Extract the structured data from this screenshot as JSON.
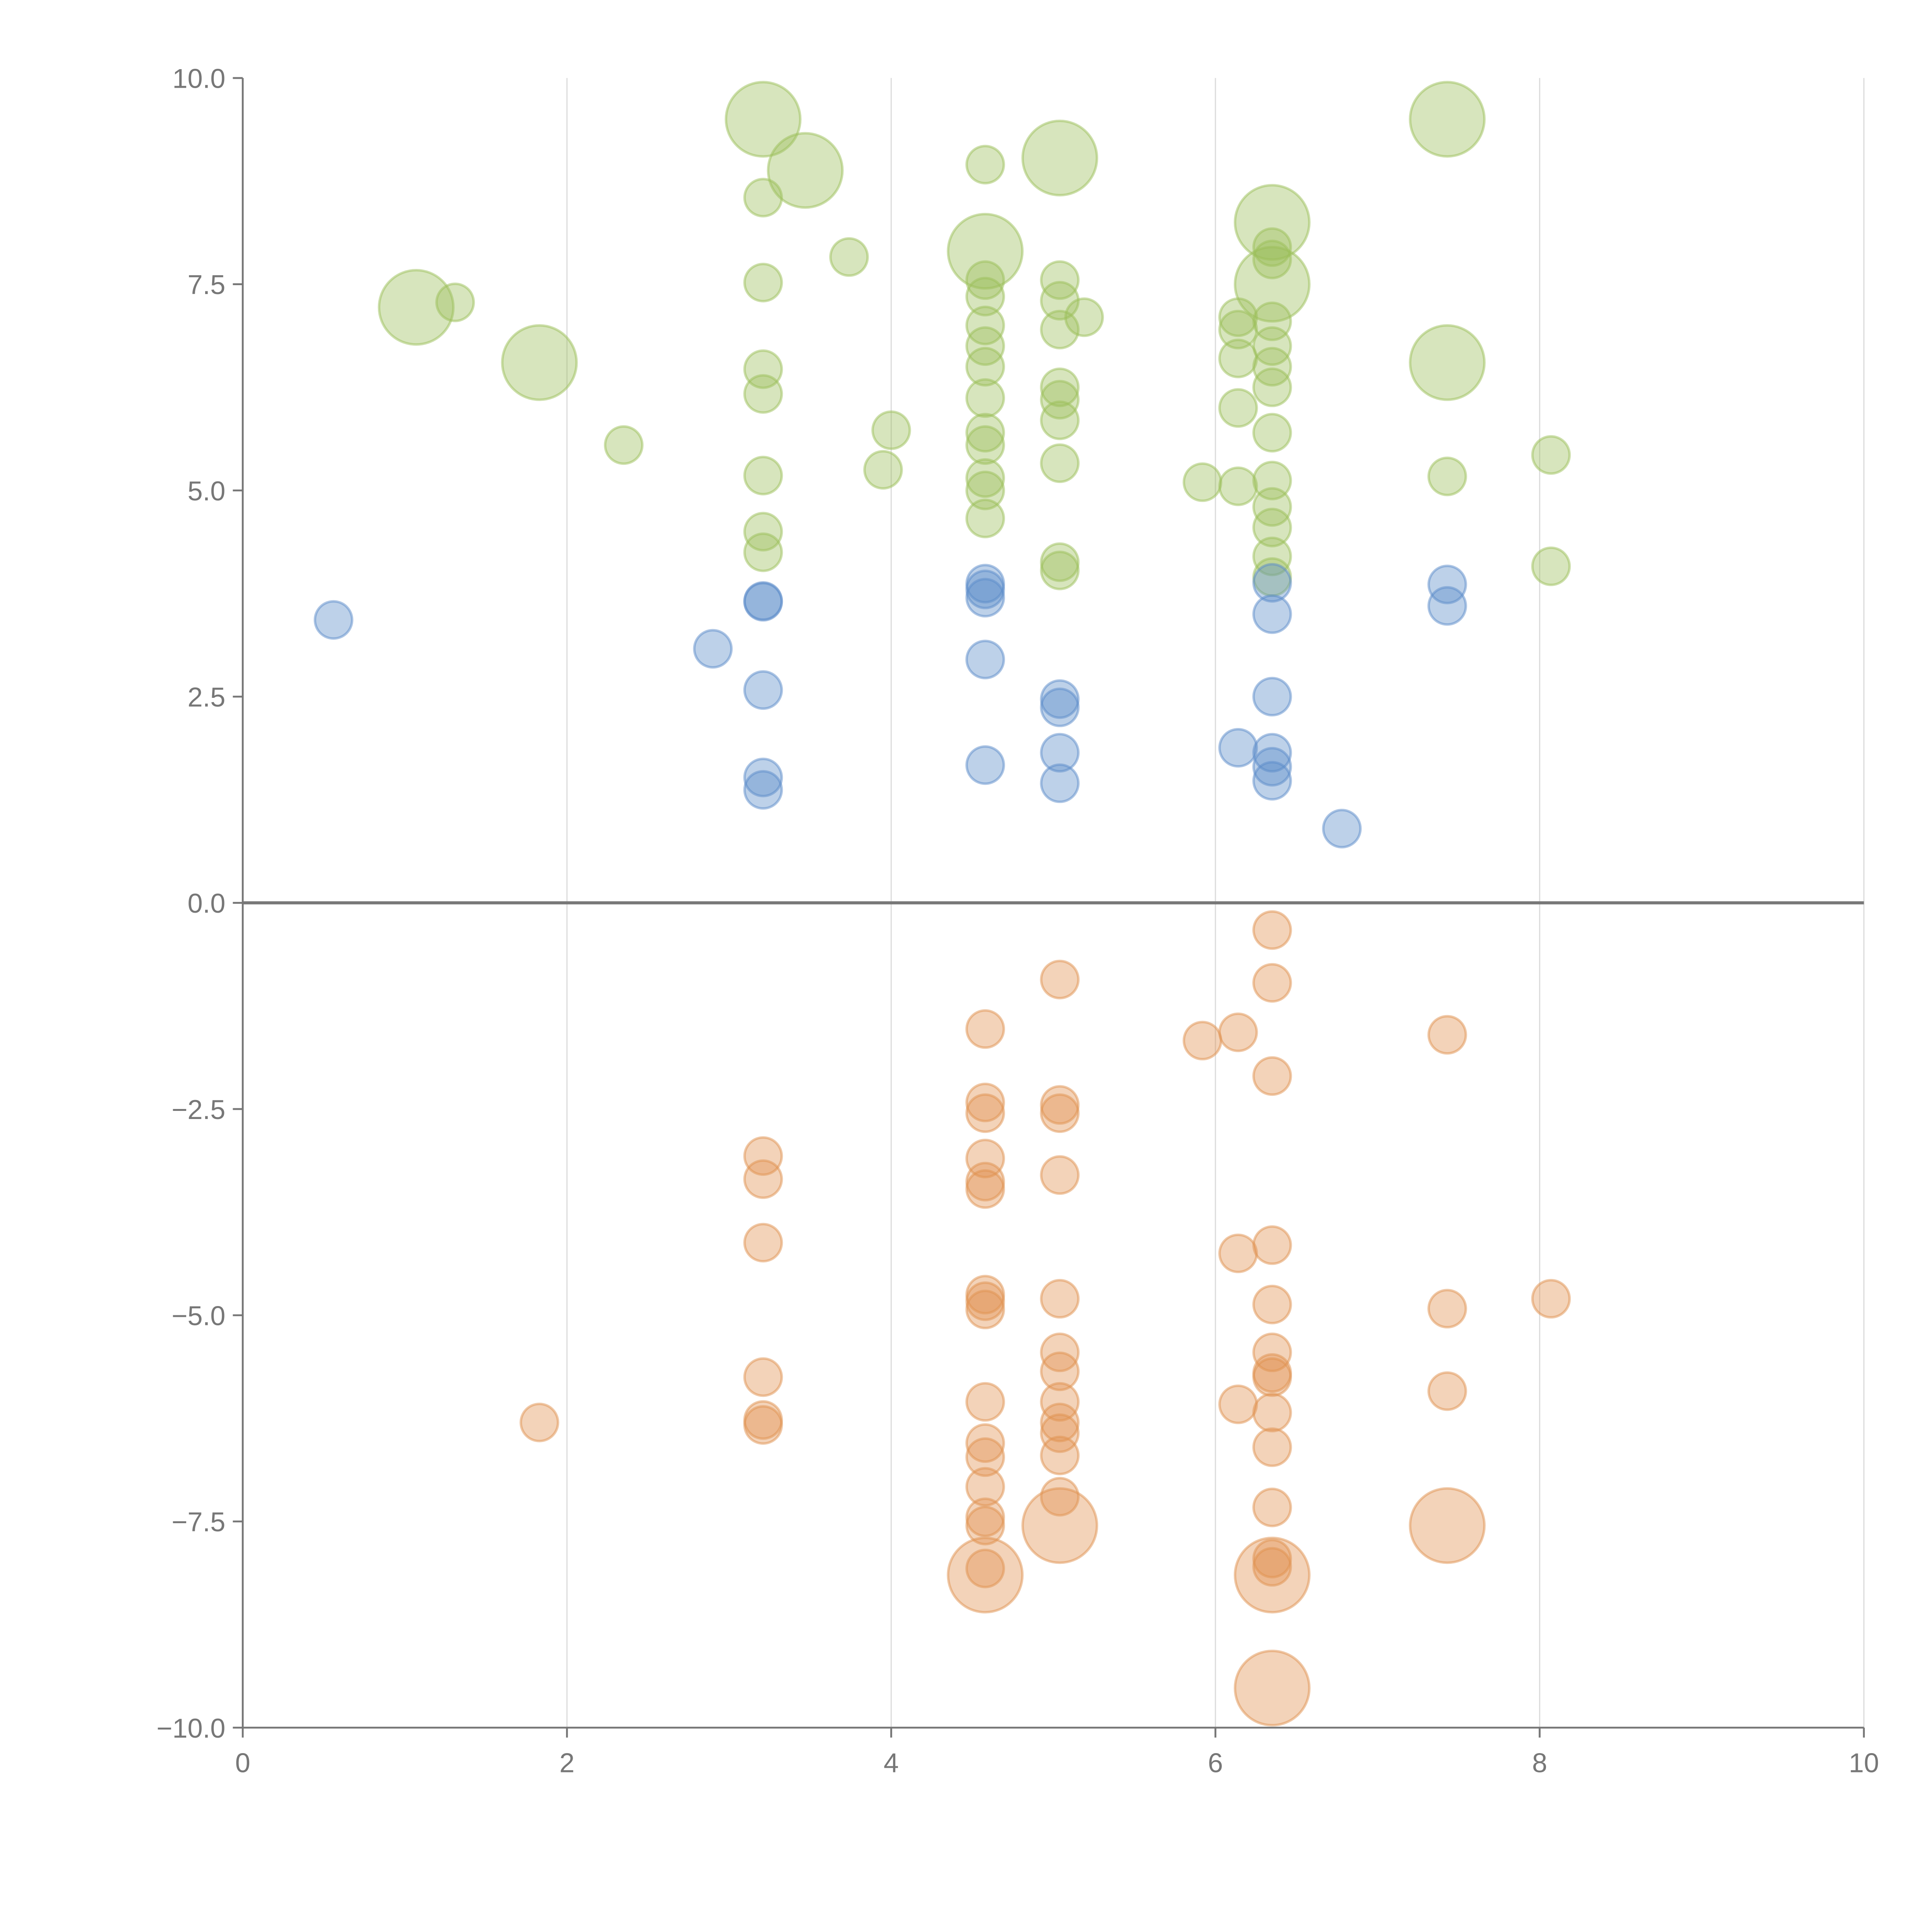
{
  "chart_data": {
    "type": "scatter",
    "title": "",
    "xlabel": "",
    "ylabel": "",
    "xlim": [
      0,
      10
    ],
    "ylim": [
      -10,
      10
    ],
    "grid": "vertical",
    "legend": "none",
    "x_ticks": [
      {
        "value": 0,
        "label": "0"
      },
      {
        "value": 2,
        "label": "2"
      },
      {
        "value": 4,
        "label": "4"
      },
      {
        "value": 6,
        "label": "6"
      },
      {
        "value": 8,
        "label": "8"
      },
      {
        "value": 10,
        "label": "10"
      }
    ],
    "y_ticks": [
      {
        "value": 10,
        "label": "10.0"
      },
      {
        "value": 7.5,
        "label": "7.5"
      },
      {
        "value": 5,
        "label": "5.0"
      },
      {
        "value": 2.5,
        "label": "2.5"
      },
      {
        "value": 0,
        "label": "0.0"
      },
      {
        "value": -2.5,
        "label": "−2.5"
      },
      {
        "value": -5,
        "label": "−5.0"
      },
      {
        "value": -7.5,
        "label": "−7.5"
      },
      {
        "value": -10,
        "label": "−10.0"
      }
    ],
    "size_note": "point format [x, y, relative_size]",
    "series": [
      {
        "name": "green",
        "color": "#9cbf5a",
        "points": [
          [
            1.07,
            7.22,
            2
          ],
          [
            1.31,
            7.28,
            1
          ],
          [
            1.83,
            6.55,
            2
          ],
          [
            2.35,
            5.55,
            1
          ],
          [
            3.21,
            9.5,
            2
          ],
          [
            3.47,
            8.88,
            2
          ],
          [
            3.21,
            8.55,
            1
          ],
          [
            3.21,
            7.52,
            1
          ],
          [
            3.21,
            6.47,
            1
          ],
          [
            3.21,
            6.17,
            1
          ],
          [
            3.21,
            5.18,
            1
          ],
          [
            3.21,
            4.5,
            1
          ],
          [
            3.21,
            4.25,
            1
          ],
          [
            3.74,
            7.83,
            1
          ],
          [
            4.0,
            5.73,
            1
          ],
          [
            3.95,
            5.25,
            1
          ],
          [
            4.58,
            8.95,
            1
          ],
          [
            4.58,
            7.9,
            2
          ],
          [
            4.58,
            7.55,
            1
          ],
          [
            4.58,
            7.35,
            1
          ],
          [
            4.58,
            7.0,
            1
          ],
          [
            4.58,
            6.75,
            1
          ],
          [
            4.58,
            6.5,
            1
          ],
          [
            4.58,
            6.12,
            1
          ],
          [
            4.58,
            5.7,
            1
          ],
          [
            4.58,
            5.55,
            1
          ],
          [
            4.58,
            5.15,
            1
          ],
          [
            4.58,
            5.0,
            1
          ],
          [
            4.58,
            4.66,
            1
          ],
          [
            5.04,
            9.03,
            2
          ],
          [
            5.04,
            7.55,
            1
          ],
          [
            5.04,
            7.3,
            1
          ],
          [
            5.04,
            6.95,
            1
          ],
          [
            5.04,
            6.25,
            1
          ],
          [
            5.04,
            6.1,
            1
          ],
          [
            5.04,
            5.85,
            1
          ],
          [
            5.04,
            5.33,
            1
          ],
          [
            5.04,
            4.13,
            1
          ],
          [
            5.04,
            4.03,
            1
          ],
          [
            5.19,
            7.1,
            1
          ],
          [
            5.92,
            5.1,
            1
          ],
          [
            6.14,
            7.1,
            1
          ],
          [
            6.14,
            6.95,
            1
          ],
          [
            6.14,
            6.6,
            1
          ],
          [
            6.14,
            6.0,
            1
          ],
          [
            6.14,
            5.05,
            1
          ],
          [
            6.35,
            8.25,
            2
          ],
          [
            6.35,
            7.5,
            2
          ],
          [
            6.35,
            7.95,
            1
          ],
          [
            6.35,
            7.8,
            1
          ],
          [
            6.35,
            7.05,
            1
          ],
          [
            6.35,
            6.75,
            1
          ],
          [
            6.35,
            6.5,
            1
          ],
          [
            6.35,
            6.25,
            1
          ],
          [
            6.35,
            5.7,
            1
          ],
          [
            6.35,
            5.12,
            1
          ],
          [
            6.35,
            4.8,
            1
          ],
          [
            6.35,
            4.55,
            1
          ],
          [
            6.35,
            4.2,
            1
          ],
          [
            6.35,
            3.95,
            1
          ],
          [
            7.43,
            9.5,
            2
          ],
          [
            7.43,
            6.55,
            2
          ],
          [
            7.43,
            5.17,
            1
          ],
          [
            8.07,
            5.43,
            1
          ],
          [
            8.07,
            4.08,
            1
          ]
        ]
      },
      {
        "name": "blue",
        "color": "#5b8bc9",
        "points": [
          [
            0.56,
            3.43,
            1
          ],
          [
            2.9,
            3.08,
            1
          ],
          [
            3.21,
            3.65,
            1
          ],
          [
            3.21,
            3.66,
            1
          ],
          [
            3.21,
            2.58,
            1
          ],
          [
            3.21,
            1.52,
            1
          ],
          [
            3.21,
            1.37,
            1
          ],
          [
            4.58,
            3.87,
            1
          ],
          [
            4.58,
            3.8,
            1
          ],
          [
            4.58,
            3.7,
            1
          ],
          [
            4.58,
            2.95,
            1
          ],
          [
            4.58,
            1.67,
            1
          ],
          [
            5.04,
            2.47,
            1
          ],
          [
            5.04,
            2.37,
            1
          ],
          [
            5.04,
            1.82,
            1
          ],
          [
            5.04,
            1.45,
            1
          ],
          [
            6.14,
            1.88,
            1
          ],
          [
            6.35,
            3.88,
            1
          ],
          [
            6.35,
            3.5,
            1
          ],
          [
            6.35,
            2.5,
            1
          ],
          [
            6.35,
            1.82,
            1
          ],
          [
            6.35,
            1.65,
            1
          ],
          [
            6.35,
            1.48,
            1
          ],
          [
            6.78,
            0.9,
            1
          ],
          [
            7.43,
            3.86,
            1
          ],
          [
            7.43,
            3.6,
            1
          ]
        ]
      },
      {
        "name": "orange",
        "color": "#e0924f",
        "points": [
          [
            1.83,
            -6.3,
            1
          ],
          [
            3.21,
            -3.07,
            1
          ],
          [
            3.21,
            -3.35,
            1
          ],
          [
            3.21,
            -4.12,
            1
          ],
          [
            3.21,
            -5.75,
            1
          ],
          [
            3.21,
            -6.27,
            1
          ],
          [
            3.21,
            -6.33,
            1
          ],
          [
            4.58,
            -1.53,
            1
          ],
          [
            4.58,
            -2.42,
            1
          ],
          [
            4.58,
            -2.55,
            1
          ],
          [
            4.58,
            -3.1,
            1
          ],
          [
            4.58,
            -3.38,
            1
          ],
          [
            4.58,
            -3.47,
            1
          ],
          [
            4.58,
            -4.75,
            1
          ],
          [
            4.58,
            -4.83,
            1
          ],
          [
            4.58,
            -4.93,
            1
          ],
          [
            4.58,
            -6.05,
            1
          ],
          [
            4.58,
            -6.55,
            1
          ],
          [
            4.58,
            -6.72,
            1
          ],
          [
            4.58,
            -7.08,
            1
          ],
          [
            4.58,
            -7.45,
            1
          ],
          [
            4.58,
            -7.55,
            1
          ],
          [
            4.58,
            -8.07,
            1
          ],
          [
            4.58,
            -8.15,
            2
          ],
          [
            5.04,
            -0.93,
            1
          ],
          [
            5.04,
            -2.45,
            1
          ],
          [
            5.04,
            -2.55,
            1
          ],
          [
            5.04,
            -3.3,
            1
          ],
          [
            5.04,
            -4.8,
            1
          ],
          [
            5.04,
            -5.45,
            1
          ],
          [
            5.04,
            -5.68,
            1
          ],
          [
            5.04,
            -6.05,
            1
          ],
          [
            5.04,
            -6.3,
            1
          ],
          [
            5.04,
            -6.43,
            1
          ],
          [
            5.04,
            -6.7,
            1
          ],
          [
            5.04,
            -7.2,
            1
          ],
          [
            5.04,
            -7.55,
            2
          ],
          [
            5.92,
            -1.67,
            1
          ],
          [
            6.14,
            -1.57,
            1
          ],
          [
            6.14,
            -4.25,
            1
          ],
          [
            6.14,
            -6.08,
            1
          ],
          [
            6.35,
            -0.33,
            1
          ],
          [
            6.35,
            -0.97,
            1
          ],
          [
            6.35,
            -2.1,
            1
          ],
          [
            6.35,
            -4.15,
            1
          ],
          [
            6.35,
            -4.87,
            1
          ],
          [
            6.35,
            -5.45,
            1
          ],
          [
            6.35,
            -5.7,
            1
          ],
          [
            6.35,
            -5.75,
            1
          ],
          [
            6.35,
            -6.18,
            1
          ],
          [
            6.35,
            -6.6,
            1
          ],
          [
            6.35,
            -7.33,
            1
          ],
          [
            6.35,
            -7.95,
            1
          ],
          [
            6.35,
            -8.05,
            1
          ],
          [
            6.35,
            -8.15,
            2
          ],
          [
            6.35,
            -9.52,
            2
          ],
          [
            7.43,
            -1.6,
            1
          ],
          [
            7.43,
            -4.92,
            1
          ],
          [
            7.43,
            -5.92,
            1
          ],
          [
            7.43,
            -7.55,
            2
          ],
          [
            8.07,
            -4.8,
            1
          ]
        ]
      }
    ]
  }
}
